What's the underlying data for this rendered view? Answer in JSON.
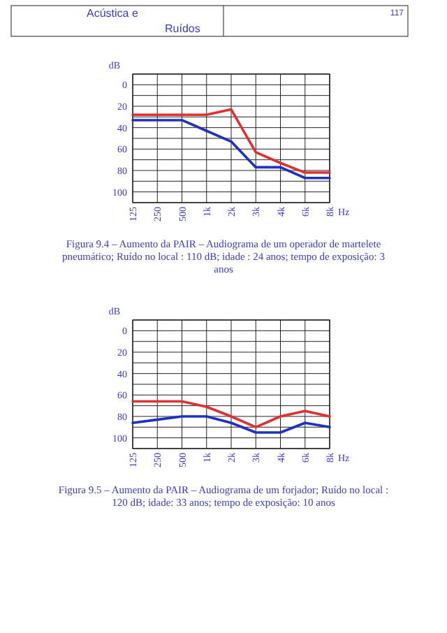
{
  "chart_data": [
    {
      "type": "other",
      "annotations": [
        "Acústica e",
        "Ruídos",
        "117"
      ]
    },
    {
      "type": "line",
      "ylabel": "dB",
      "xlabel": "Hz",
      "categories": [
        "125",
        "250",
        "500",
        "1k",
        "2k",
        "3k",
        "4k",
        "6k",
        "8k"
      ],
      "ylim": [
        110,
        -10
      ],
      "yticks": [
        {
          "value": -10,
          "label": null
        },
        0,
        {
          "value": 10,
          "label": null
        },
        20,
        {
          "value": 30,
          "label": null
        },
        40,
        {
          "value": 50,
          "label": null
        },
        60,
        {
          "value": 70,
          "label": null
        },
        80,
        {
          "value": 90,
          "label": null
        },
        100,
        {
          "value": 110,
          "label": null
        }
      ],
      "grid": true,
      "line_style": "solid",
      "marker": "none",
      "series": [
        {
          "color": "#e03030",
          "values": [
            28,
            28,
            28,
            28,
            23,
            63,
            73,
            82,
            82
          ]
        },
        {
          "color": "#2030c0",
          "values": [
            33,
            33,
            33,
            43,
            53,
            77,
            77,
            87,
            87
          ]
        }
      ],
      "annotations": [
        "Figura 9.4 – Aumento da PAIR – Audiograma de um operador de martelete pneumático; Ruído no local : 110 dB; idade : 24 anos; tempo de exposição: 3 anos"
      ]
    },
    {
      "type": "line",
      "ylabel": "dB",
      "xlabel": "Hz",
      "categories": [
        "125",
        "250",
        "500",
        "1k",
        "2k",
        "3k",
        "4k",
        "6k",
        "8k"
      ],
      "ylim": [
        110,
        -10
      ],
      "yticks": [
        {
          "value": -10,
          "label": null
        },
        0,
        {
          "value": 10,
          "label": null
        },
        20,
        {
          "value": 30,
          "label": null
        },
        40,
        {
          "value": 50,
          "label": null
        },
        60,
        {
          "value": 70,
          "label": null
        },
        80,
        {
          "value": 90,
          "label": null
        },
        100,
        {
          "value": 110,
          "label": null
        }
      ],
      "grid": true,
      "line_style": "solid",
      "marker": "none",
      "series": [
        {
          "color": "#e03030",
          "values": [
            66,
            66,
            66,
            71,
            80,
            90,
            80,
            75,
            80
          ]
        },
        {
          "color": "#2030c0",
          "values": [
            86,
            83,
            80,
            80,
            86,
            95,
            95,
            86,
            90
          ]
        }
      ],
      "annotations": [
        "Figura 9.5 – Aumento da PAIR – Audiograma de um forjador; Ruído no local : 120 dB; idade: 33 anos; tempo de exposição: 10 anos"
      ]
    }
  ]
}
